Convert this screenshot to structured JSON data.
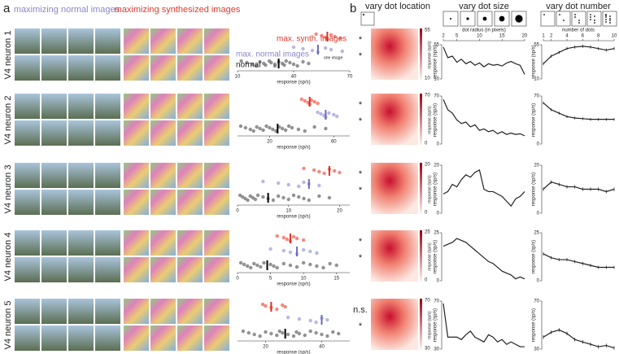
{
  "panel_labels": [
    "a",
    "b"
  ],
  "headers": {
    "normal": "maximizing normal images",
    "synth": "maximizing synthesized images",
    "location": "vary dot location",
    "size": "vary dot size",
    "number": "vary dot number"
  },
  "annotations": {
    "max_synth": "max. synth. images",
    "max_normal": "max. normal images",
    "normal": "normal",
    "one_image": "one image"
  },
  "axis_labels": {
    "strip": "response (sp/s)",
    "colorbar": "response (sp/s)",
    "response": "response (sp/s)",
    "dot_radius": "dot radius (in pixels)",
    "dot_number": "number of dots"
  },
  "dot_size": {
    "x": [
      2,
      3,
      4,
      5,
      6,
      7,
      8,
      9,
      10,
      11,
      12,
      13,
      14,
      15,
      16,
      17,
      18,
      19,
      20
    ],
    "xlim": [
      2,
      20
    ],
    "xticks": [
      2,
      5,
      10,
      15,
      20
    ]
  },
  "dot_number": {
    "x": [
      1,
      2,
      3,
      4,
      5,
      6,
      7,
      8,
      9,
      10
    ],
    "xlim": [
      1,
      10
    ],
    "xticks": [
      1,
      2,
      4,
      6,
      8,
      10
    ]
  },
  "neurons": [
    {
      "label": "V4 neuron 1",
      "significance": [
        "*",
        "*"
      ],
      "strip": {
        "xlim": [
          10,
          70
        ],
        "xticks": [
          10,
          40,
          70
        ],
        "synth": [
          52,
          55,
          57,
          58,
          60,
          62,
          65
        ],
        "max_normal": [
          40,
          45,
          50,
          53,
          57,
          60,
          66
        ],
        "normal": [
          12,
          15,
          18,
          20,
          22,
          24,
          25,
          27,
          28,
          30,
          30,
          32,
          34,
          35,
          36,
          38,
          40,
          42,
          45,
          48
        ],
        "means": {
          "synth": 58,
          "max_normal": 53,
          "normal": 32
        }
      },
      "ylim": [
        10,
        55
      ],
      "yticks": [
        10,
        55
      ],
      "size_values": [
        52,
        38,
        40,
        32,
        36,
        30,
        33,
        28,
        31,
        26,
        30,
        28,
        29,
        27,
        31,
        33,
        30,
        28,
        16
      ],
      "number_values": [
        30,
        40,
        45,
        50,
        52,
        53,
        52,
        50,
        48,
        50
      ],
      "number_errors": [
        2,
        2,
        2,
        2,
        2,
        2,
        2,
        2,
        2,
        2
      ]
    },
    {
      "label": "V4 neuron 2",
      "significance": [
        "*",
        "*"
      ],
      "strip": {
        "xlim": [
          0,
          70
        ],
        "xticks": [
          20,
          60
        ],
        "synth": [
          40,
          42,
          44,
          45,
          46,
          48,
          50
        ],
        "max_normal": [
          50,
          52,
          54,
          55,
          57,
          60,
          62
        ],
        "normal": [
          2,
          5,
          8,
          10,
          12,
          14,
          16,
          18,
          20,
          22,
          24,
          26,
          28,
          30,
          32,
          34,
          38,
          42,
          48,
          55
        ],
        "means": {
          "synth": 45,
          "max_normal": 55,
          "normal": 25
        }
      },
      "ylim": [
        0,
        70
      ],
      "yticks": [
        0,
        70
      ],
      "size_values": [
        65,
        50,
        45,
        35,
        30,
        32,
        25,
        28,
        20,
        22,
        18,
        20,
        15,
        18,
        14,
        16,
        14,
        15,
        12
      ],
      "number_values": [
        60,
        50,
        45,
        40,
        38,
        37,
        36,
        36,
        36,
        36
      ],
      "number_errors": [
        2,
        2,
        2,
        2,
        2,
        2,
        2,
        2,
        2,
        2
      ]
    },
    {
      "label": "V4 neuron 3",
      "significance": [
        "*",
        "*"
      ],
      "strip": {
        "xlim": [
          0,
          22
        ],
        "xticks": [
          0,
          10,
          20
        ],
        "synth": [
          13,
          15,
          16,
          17,
          18,
          19,
          20
        ],
        "max_normal": [
          5,
          8,
          10,
          12,
          13,
          14,
          16
        ],
        "normal": [
          0.5,
          1,
          1.5,
          2,
          2.5,
          3,
          3.5,
          4,
          5,
          6,
          7,
          8,
          9,
          10,
          11,
          12,
          13,
          14,
          16,
          18
        ],
        "means": {
          "synth": 18,
          "max_normal": 14,
          "normal": 6
        }
      },
      "ylim": [
        0,
        20
      ],
      "yticks": [
        0,
        20
      ],
      "size_values": [
        8,
        9,
        12,
        11,
        14,
        16,
        15,
        17,
        18,
        10,
        9,
        9,
        8,
        7,
        5,
        3,
        6,
        7,
        9
      ],
      "number_values": [
        10,
        13,
        12,
        11,
        11,
        10,
        10,
        10,
        9,
        10
      ],
      "number_errors": [
        0.7,
        0.7,
        0.7,
        0.7,
        0.7,
        0.7,
        0.7,
        0.7,
        0.7,
        0.7
      ]
    },
    {
      "label": "V4 neuron 4",
      "significance": [
        "*",
        "*"
      ],
      "strip": {
        "xlim": [
          0,
          17
        ],
        "xticks": [
          0,
          5,
          10,
          15
        ],
        "synth": [
          6,
          7,
          7.5,
          8,
          8.5,
          9,
          10
        ],
        "max_normal": [
          5,
          7,
          8,
          9,
          10,
          11,
          12
        ],
        "normal": [
          0.5,
          1,
          1.5,
          2,
          2.5,
          3,
          3.5,
          4,
          5,
          5.5,
          6,
          7,
          8,
          9,
          10,
          11,
          12,
          13,
          14,
          15
        ],
        "means": {
          "synth": 8,
          "max_normal": 9,
          "normal": 4.5
        }
      },
      "ylim": [
        0,
        25
      ],
      "yticks": [
        0,
        25
      ],
      "size_values": [
        18,
        19,
        20,
        22,
        21,
        20,
        18,
        16,
        14,
        12,
        10,
        9,
        7,
        5,
        4,
        3,
        1,
        2,
        1
      ],
      "number_values": [
        14,
        12,
        11,
        11,
        10,
        9,
        8,
        7,
        7,
        7
      ],
      "number_errors": [
        0.8,
        0.8,
        0.8,
        0.8,
        0.8,
        0.8,
        0.8,
        0.8,
        0.8,
        0.8
      ]
    },
    {
      "label": "V4 neuron 5",
      "significance": [
        "n.s.",
        "*"
      ],
      "strip": {
        "xlim": [
          10,
          50
        ],
        "xticks": [
          20,
          40
        ],
        "synth": [
          19,
          20,
          22,
          24,
          26,
          27
        ],
        "max_normal": [
          28,
          32,
          36,
          38,
          40,
          42
        ],
        "normal": [
          12,
          14,
          16,
          18,
          20,
          22,
          24,
          25,
          26,
          28,
          30,
          31,
          32,
          34,
          36,
          38,
          40,
          42,
          44,
          46
        ],
        "means": {
          "synth": 22,
          "max_normal": 40,
          "normal": 27
        }
      },
      "ylim": [
        30,
        70
      ],
      "yticks": [
        30,
        70
      ],
      "size_values": [
        68,
        40,
        40,
        40,
        38,
        42,
        45,
        40,
        38,
        36,
        42,
        40,
        36,
        38,
        34,
        36,
        34,
        32,
        32
      ],
      "number_values": [
        40,
        44,
        46,
        43,
        38,
        36,
        34,
        32,
        33,
        31
      ],
      "number_errors": [
        1.5,
        1.5,
        1.5,
        1.5,
        1.5,
        1.5,
        1.5,
        1.5,
        1.5,
        1.5
      ]
    }
  ]
}
